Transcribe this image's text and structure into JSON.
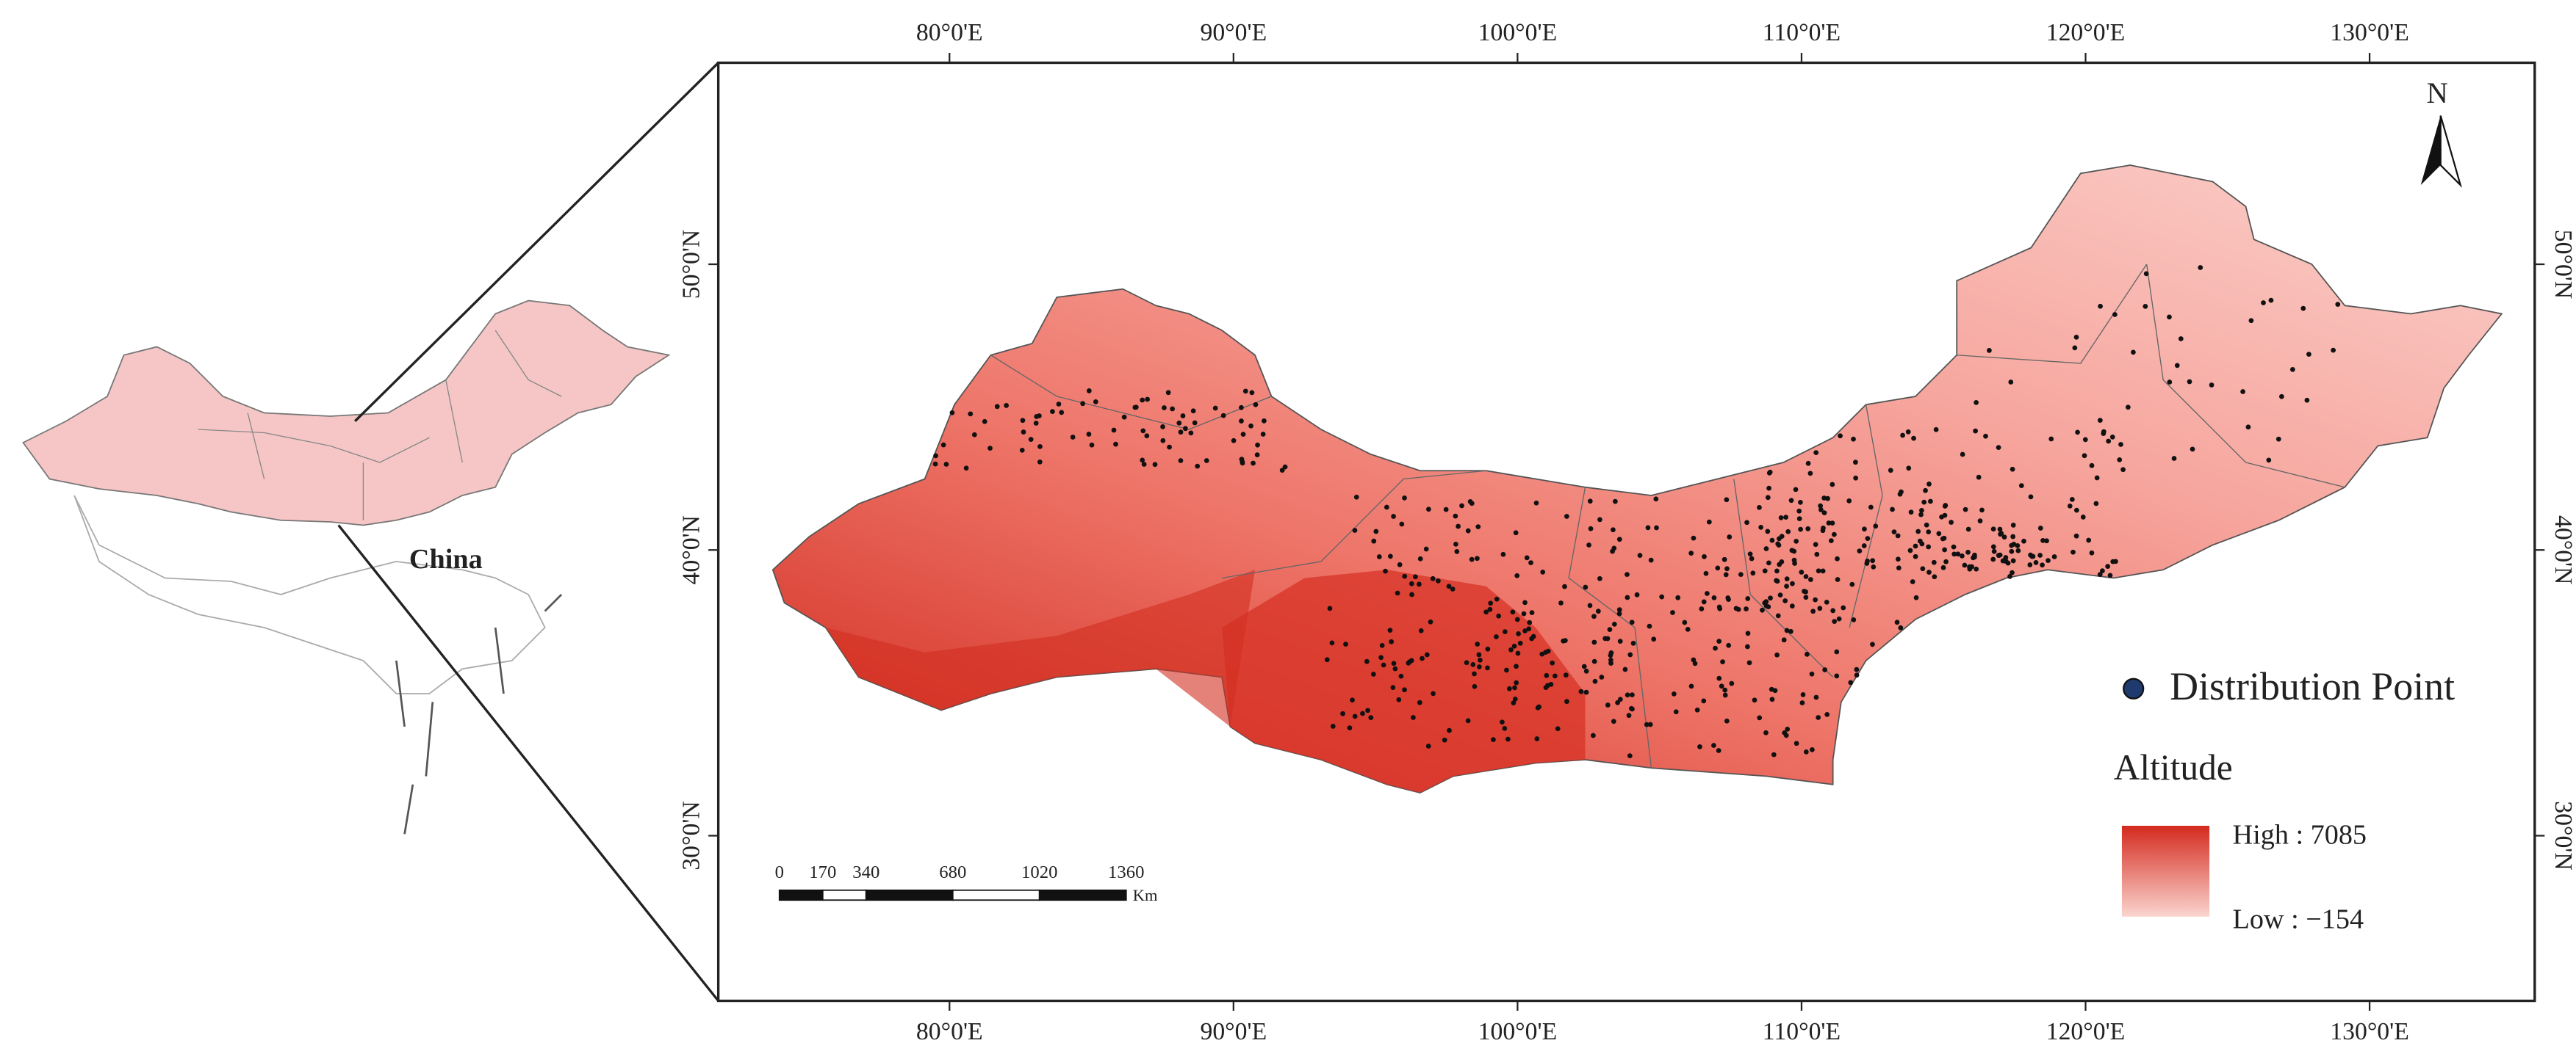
{
  "inset": {
    "label": "China"
  },
  "map": {
    "xticks": [
      {
        "value": 80,
        "label": "80°0'E"
      },
      {
        "value": 90,
        "label": "90°0'E"
      },
      {
        "value": 100,
        "label": "100°0'E"
      },
      {
        "value": 110,
        "label": "110°0'E"
      },
      {
        "value": 120,
        "label": "120°0'E"
      },
      {
        "value": 130,
        "label": "130°0'E"
      }
    ],
    "yticks": [
      {
        "value": 30,
        "label": "30°0'N"
      },
      {
        "value": 40,
        "label": "40°0'N"
      },
      {
        "value": 50,
        "label": "50°0'N"
      }
    ],
    "north": "N",
    "scale_bar": {
      "ticks": [
        0,
        170,
        340,
        680,
        1020,
        1360
      ],
      "unit": "Km"
    },
    "legend": {
      "point": "Distribution Point",
      "title": "Altitude",
      "high": "High : 7085",
      "low": "Low : −154"
    }
  }
}
